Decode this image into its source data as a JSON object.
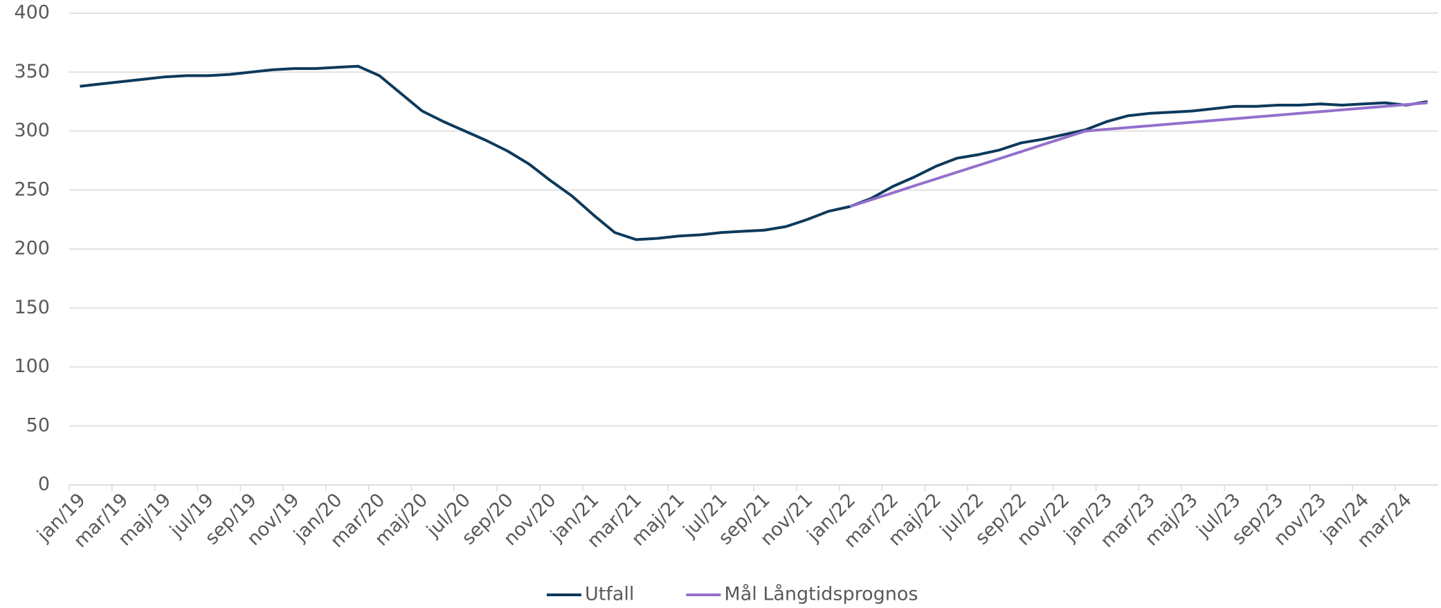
{
  "chart_data": {
    "type": "line",
    "categories": [
      "jan/19",
      null,
      "mar/19",
      null,
      "maj/19",
      null,
      "jul/19",
      null,
      "sep/19",
      null,
      "nov/19",
      null,
      "jan/20",
      null,
      "mar/20",
      null,
      "maj/20",
      null,
      "jul/20",
      null,
      "sep/20",
      null,
      "nov/20",
      null,
      "jan/21",
      null,
      "mar/21",
      null,
      "maj/21",
      null,
      "jul/21",
      null,
      "sep/21",
      null,
      "nov/21",
      null,
      "jan/22",
      null,
      "mar/22",
      null,
      "maj/22",
      null,
      "jul/22",
      null,
      "sep/22",
      null,
      "nov/22",
      null,
      "jan/23",
      null,
      "mar/23",
      null,
      "maj/23",
      null,
      "jul/23",
      null,
      "sep/23",
      null,
      "nov/23",
      null,
      "jan/24",
      null,
      "mar/24",
      null
    ],
    "series": [
      {
        "name": "Utfall",
        "color": "#0d3a5c",
        "values": [
          338,
          340,
          342,
          344,
          346,
          347,
          347,
          348,
          350,
          352,
          353,
          353,
          354,
          355,
          347,
          332,
          317,
          308,
          300,
          292,
          283,
          272,
          258,
          245,
          229,
          214,
          208,
          209,
          211,
          212,
          214,
          215,
          216,
          219,
          225,
          232,
          236,
          243,
          253,
          261,
          270,
          277,
          280,
          284,
          290,
          293,
          297,
          301,
          308,
          313,
          315,
          316,
          317,
          319,
          321,
          321,
          322,
          322,
          323,
          322,
          323,
          324,
          322,
          325
        ]
      },
      {
        "name": "Mål Långtidsprognos",
        "color": "#9370cc",
        "values": [
          null,
          null,
          null,
          null,
          null,
          null,
          null,
          null,
          null,
          null,
          null,
          null,
          null,
          null,
          null,
          null,
          null,
          null,
          null,
          null,
          null,
          null,
          null,
          null,
          null,
          null,
          null,
          null,
          null,
          null,
          null,
          null,
          null,
          null,
          null,
          null,
          236,
          241.8,
          247.6,
          253.5,
          259.3,
          265.1,
          270.9,
          276.7,
          282.5,
          288.4,
          294.2,
          300,
          301.5,
          303,
          304.5,
          306,
          307.5,
          309,
          310.5,
          312,
          313.5,
          315,
          316.5,
          318,
          319.5,
          321,
          322.5,
          324
        ]
      }
    ],
    "ylim": [
      0,
      400
    ],
    "yticks": [
      0,
      50,
      100,
      150,
      200,
      250,
      300,
      350,
      400
    ],
    "grid": true,
    "legend": "bottom"
  }
}
